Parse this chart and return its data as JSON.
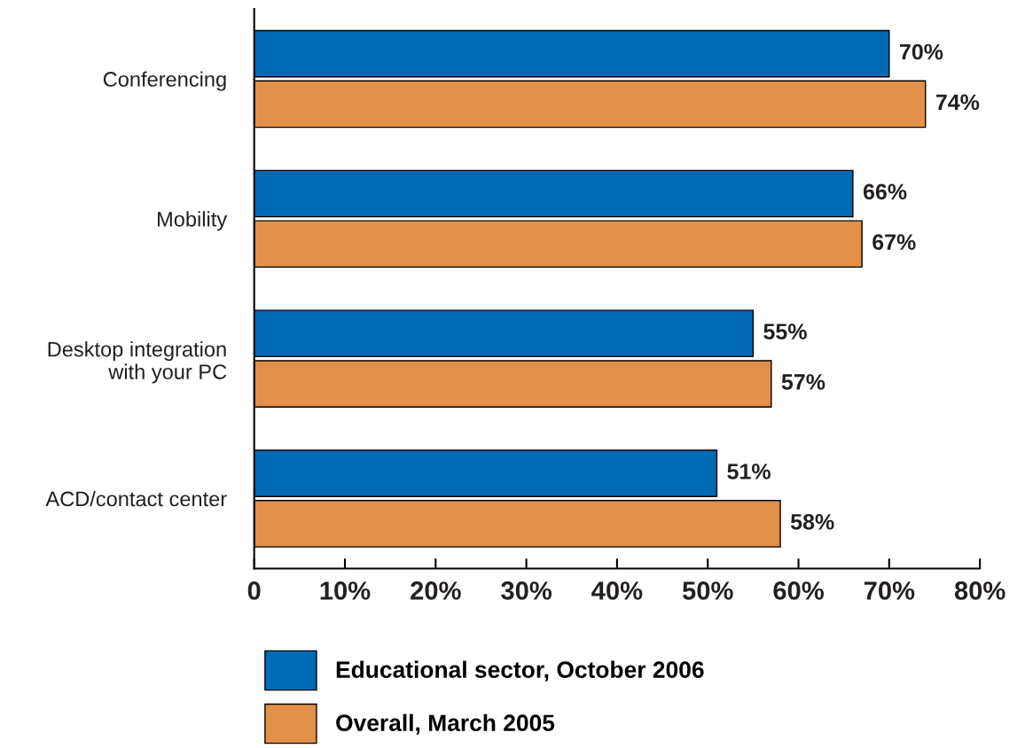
{
  "chart_data": {
    "type": "bar",
    "orientation": "horizontal",
    "categories": [
      "Conferencing",
      "Mobility",
      "Desktop integration\nwith your PC",
      "ACD/contact center"
    ],
    "series": [
      {
        "name": "Educational sector, October 2006",
        "color": "#006ab4",
        "values": [
          70,
          66,
          55,
          51
        ],
        "value_labels": [
          "70%",
          "66%",
          "55%",
          "51%"
        ]
      },
      {
        "name": "Overall, March 2005",
        "color": "#e2904a",
        "values": [
          74,
          67,
          57,
          58
        ],
        "value_labels": [
          "74%",
          "67%",
          "57%",
          "58%"
        ]
      }
    ],
    "xlim": [
      0,
      80
    ],
    "xticks": [
      0,
      {
        "value": 10,
        "label": "10%"
      },
      {
        "value": 20,
        "label": "20%"
      },
      {
        "value": 30,
        "label": "30%"
      },
      {
        "value": 40,
        "label": "40%"
      },
      {
        "value": 50,
        "label": "50%"
      },
      {
        "value": 60,
        "label": "60%"
      },
      {
        "value": 70,
        "label": "70%"
      },
      {
        "value": 80,
        "label": "80%"
      }
    ],
    "grid": false,
    "legend": "bottom"
  }
}
